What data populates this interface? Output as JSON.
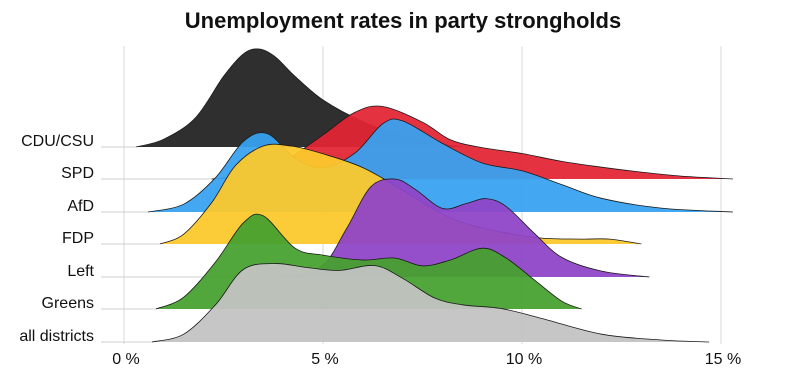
{
  "chart_data": {
    "type": "area",
    "title": "Unemployment rates in party strongholds",
    "xlabel": "",
    "ylabel": "",
    "x_ticks": [
      0,
      5,
      10,
      15
    ],
    "x_tick_labels": [
      "0 %",
      "5 %",
      "10 %",
      "15 %"
    ],
    "xlim": [
      0,
      16.6
    ],
    "grid": "vertical",
    "legend": "none",
    "series": [
      {
        "name": "CDU/CSU",
        "color": "#222222",
        "x": [
          0.3,
          1.0,
          1.8,
          2.5,
          3.0,
          3.4,
          3.8,
          4.3,
          5.0,
          6.0,
          7.0,
          8.0,
          8.5
        ],
        "density": [
          0.0,
          0.08,
          0.3,
          0.72,
          0.95,
          1.0,
          0.92,
          0.72,
          0.48,
          0.26,
          0.12,
          0.03,
          0.0
        ]
      },
      {
        "name": "SPD",
        "color": "#e32535",
        "x": [
          2.2,
          3.0,
          4.0,
          5.0,
          5.8,
          6.5,
          7.5,
          8.2,
          9.0,
          10.0,
          11.0,
          12.0,
          13.0,
          14.0,
          15.3
        ],
        "density": [
          0.0,
          0.04,
          0.18,
          0.45,
          0.68,
          0.74,
          0.58,
          0.4,
          0.32,
          0.26,
          0.18,
          0.12,
          0.07,
          0.03,
          0.0
        ]
      },
      {
        "name": "AfD",
        "color": "#38a2f0",
        "x": [
          0.6,
          1.5,
          2.3,
          3.0,
          3.6,
          4.3,
          5.0,
          5.8,
          6.5,
          7.0,
          8.0,
          9.0,
          10.0,
          11.0,
          12.0,
          13.5,
          15.3
        ],
        "density": [
          0.0,
          0.08,
          0.35,
          0.72,
          0.8,
          0.55,
          0.45,
          0.6,
          0.9,
          0.93,
          0.7,
          0.5,
          0.42,
          0.28,
          0.14,
          0.04,
          0.0
        ]
      },
      {
        "name": "FDP",
        "color": "#fcc92c",
        "x": [
          0.9,
          1.5,
          2.2,
          2.8,
          3.5,
          4.2,
          5.0,
          6.0,
          7.0,
          7.8,
          8.5,
          9.5,
          10.5,
          11.5,
          12.2,
          13.0
        ],
        "density": [
          0.0,
          0.1,
          0.42,
          0.8,
          1.0,
          1.0,
          0.92,
          0.78,
          0.55,
          0.35,
          0.22,
          0.12,
          0.06,
          0.05,
          0.05,
          0.0
        ]
      },
      {
        "name": "Left",
        "color": "#8f44c7",
        "x": [
          3.2,
          4.2,
          5.0,
          5.6,
          6.2,
          6.8,
          7.3,
          8.0,
          8.6,
          9.1,
          9.6,
          10.3,
          11.0,
          12.0,
          13.2
        ],
        "density": [
          0.0,
          0.02,
          0.12,
          0.5,
          0.92,
          1.0,
          0.9,
          0.7,
          0.75,
          0.8,
          0.72,
          0.45,
          0.2,
          0.06,
          0.0
        ]
      },
      {
        "name": "Greens",
        "color": "#46a030",
        "x": [
          0.8,
          1.5,
          2.3,
          3.0,
          3.5,
          4.3,
          5.0,
          6.0,
          6.8,
          7.5,
          8.2,
          9.0,
          9.6,
          10.3,
          11.0,
          11.5
        ],
        "density": [
          0.0,
          0.12,
          0.48,
          0.88,
          0.95,
          0.62,
          0.55,
          0.5,
          0.52,
          0.44,
          0.5,
          0.62,
          0.52,
          0.3,
          0.08,
          0.0
        ]
      },
      {
        "name": "all districts",
        "color": "#c2c2c2",
        "x": [
          0.7,
          1.5,
          2.3,
          3.0,
          3.8,
          4.6,
          5.4,
          6.3,
          7.0,
          7.8,
          8.5,
          9.5,
          10.5,
          12.0,
          13.5,
          14.7
        ],
        "density": [
          0.0,
          0.08,
          0.38,
          0.74,
          0.8,
          0.76,
          0.73,
          0.78,
          0.65,
          0.45,
          0.38,
          0.34,
          0.24,
          0.08,
          0.02,
          0.0
        ]
      }
    ]
  }
}
